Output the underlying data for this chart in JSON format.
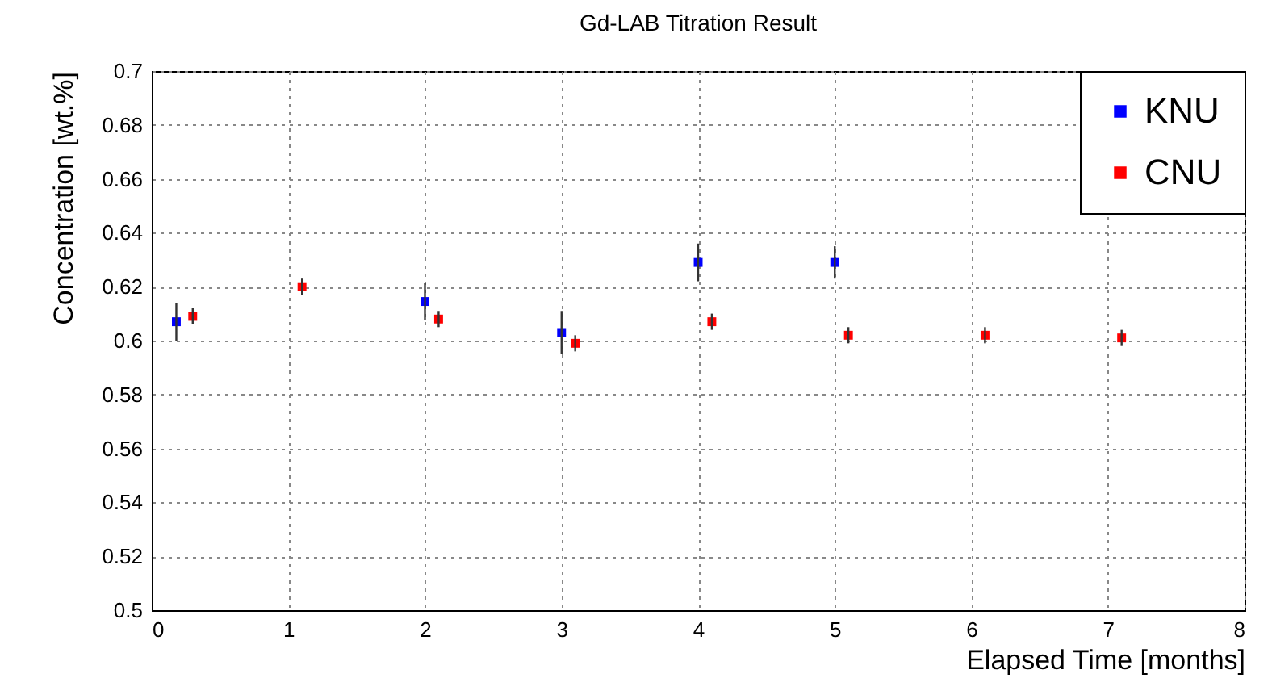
{
  "chart_data": {
    "type": "scatter",
    "title": "Gd-LAB Titration Result",
    "xlabel": "Elapsed Time [months]",
    "ylabel": "Concentration [wt.%]",
    "xlim": [
      0,
      8
    ],
    "xticks": [
      0,
      1,
      2,
      3,
      4,
      5,
      6,
      7,
      8
    ],
    "ylim": [
      0.5,
      0.7
    ],
    "yticks": [
      0.5,
      0.52,
      0.54,
      0.56,
      0.58,
      0.6,
      0.62,
      0.64,
      0.66,
      0.68,
      0.7
    ],
    "grid": true,
    "legend": "top right",
    "marker": "square",
    "series": [
      {
        "name": "KNU",
        "color": "#0000ff",
        "x": [
          0.18,
          2.0,
          3.0,
          4.0,
          5.0
        ],
        "values": [
          0.607,
          0.6145,
          0.603,
          0.629,
          0.629
        ],
        "errors": [
          0.007,
          0.007,
          0.008,
          0.007,
          0.006
        ]
      },
      {
        "name": "CNU",
        "color": "#ff0000",
        "x": [
          0.3,
          1.1,
          2.1,
          3.1,
          4.1,
          5.1,
          6.1,
          7.1
        ],
        "values": [
          0.609,
          0.62,
          0.608,
          0.599,
          0.607,
          0.602,
          0.602,
          0.601
        ],
        "errors": [
          0.003,
          0.003,
          0.003,
          0.003,
          0.003,
          0.003,
          0.003,
          0.003
        ]
      }
    ]
  }
}
